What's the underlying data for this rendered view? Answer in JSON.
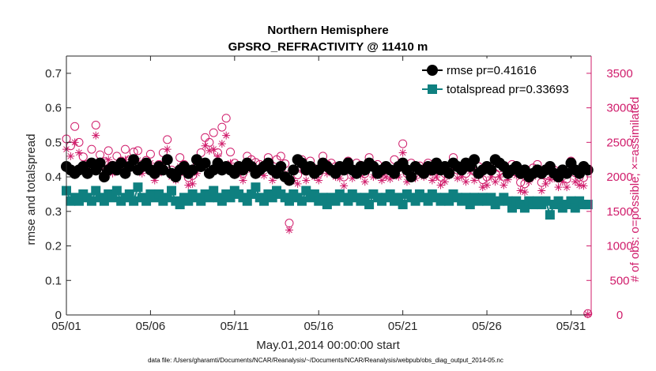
{
  "chart_data": {
    "type": "line",
    "title": "Northern Hemisphere",
    "subtitle": "GPSRO_REFRACTIVITY @ 11410 m",
    "xlabel": "May.01,2014 00:00:00 start",
    "ylabel": "rmse and totalspread",
    "ylabel_right": "# of obs: o=possible; ×=assimilated",
    "x_tick_labels": [
      "05/01",
      "05/06",
      "05/11",
      "05/16",
      "05/21",
      "05/26",
      "05/31"
    ],
    "x_tick_values": [
      0,
      5,
      10,
      15,
      20,
      25,
      30
    ],
    "xlim": [
      0,
      31.2
    ],
    "y_tick_labels": [
      "0",
      "0.1",
      "0.2",
      "0.3",
      "0.4",
      "0.5",
      "0.6",
      "0.7"
    ],
    "y_tick_values": [
      0,
      0.1,
      0.2,
      0.3,
      0.4,
      0.5,
      0.6,
      0.7
    ],
    "ylim": [
      0,
      0.75
    ],
    "y2_tick_labels": [
      "0",
      "500",
      "1000",
      "1500",
      "2000",
      "2500",
      "3000",
      "3500"
    ],
    "y2_tick_values": [
      0,
      500,
      1000,
      1500,
      2000,
      2500,
      3000,
      3500
    ],
    "y2lim": [
      0,
      3750
    ],
    "series": [
      {
        "name": "rmse",
        "legend": "rmse pr=0.41616",
        "color": "#000000",
        "marker": "circle",
        "x": [
          0.0,
          0.25,
          0.5,
          0.75,
          1.0,
          1.25,
          1.5,
          1.75,
          2.0,
          2.25,
          2.5,
          2.75,
          3.0,
          3.25,
          3.5,
          3.75,
          4.0,
          4.25,
          4.5,
          4.75,
          5.0,
          5.25,
          5.5,
          5.75,
          6.0,
          6.25,
          6.5,
          6.75,
          7.0,
          7.25,
          7.5,
          7.75,
          8.0,
          8.25,
          8.5,
          8.75,
          9.0,
          9.25,
          9.5,
          9.75,
          10.0,
          10.25,
          10.5,
          10.75,
          11.0,
          11.25,
          11.5,
          11.75,
          12.0,
          12.25,
          12.5,
          12.75,
          13.0,
          13.25,
          13.5,
          13.75,
          14.0,
          14.25,
          14.5,
          14.75,
          15.0,
          15.25,
          15.5,
          15.75,
          16.0,
          16.25,
          16.5,
          16.75,
          17.0,
          17.25,
          17.5,
          17.75,
          18.0,
          18.25,
          18.5,
          18.75,
          19.0,
          19.25,
          19.5,
          19.75,
          20.0,
          20.25,
          20.5,
          20.75,
          21.0,
          21.25,
          21.5,
          21.75,
          22.0,
          22.25,
          22.5,
          22.75,
          23.0,
          23.25,
          23.5,
          23.75,
          24.0,
          24.25,
          24.5,
          24.75,
          25.0,
          25.25,
          25.5,
          25.75,
          26.0,
          26.25,
          26.5,
          26.75,
          27.0,
          27.25,
          27.5,
          27.75,
          28.0,
          28.25,
          28.5,
          28.75,
          29.0,
          29.25,
          29.5,
          29.75,
          30.0,
          30.25,
          30.5,
          30.75,
          31.0
        ],
        "y": [
          0.43,
          0.42,
          0.41,
          0.42,
          0.43,
          0.41,
          0.44,
          0.42,
          0.44,
          0.4,
          0.42,
          0.43,
          0.42,
          0.44,
          0.41,
          0.43,
          0.45,
          0.42,
          0.43,
          0.44,
          0.42,
          0.41,
          0.43,
          0.42,
          0.45,
          0.41,
          0.4,
          0.42,
          0.43,
          0.41,
          0.42,
          0.45,
          0.43,
          0.44,
          0.41,
          0.42,
          0.44,
          0.42,
          0.43,
          0.42,
          0.41,
          0.43,
          0.42,
          0.44,
          0.43,
          0.41,
          0.42,
          0.43,
          0.44,
          0.42,
          0.41,
          0.43,
          0.4,
          0.39,
          0.42,
          0.45,
          0.44,
          0.42,
          0.43,
          0.41,
          0.42,
          0.44,
          0.43,
          0.42,
          0.41,
          0.43,
          0.42,
          0.44,
          0.42,
          0.41,
          0.43,
          0.42,
          0.44,
          0.43,
          0.41,
          0.42,
          0.43,
          0.42,
          0.41,
          0.43,
          0.44,
          0.42,
          0.4,
          0.43,
          0.42,
          0.41,
          0.43,
          0.42,
          0.44,
          0.42,
          0.43,
          0.41,
          0.44,
          0.43,
          0.42,
          0.44,
          0.43,
          0.45,
          0.41,
          0.42,
          0.43,
          0.42,
          0.45,
          0.44,
          0.43,
          0.41,
          0.42,
          0.43,
          0.41,
          0.42,
          0.4,
          0.41,
          0.42,
          0.41,
          0.42,
          0.43,
          0.41,
          0.4,
          0.42,
          0.41,
          0.44,
          0.42,
          0.41,
          0.43,
          0.42
        ]
      },
      {
        "name": "totalspread",
        "legend": "totalspread pr=0.33693",
        "color": "#0f8080",
        "marker": "square",
        "x": [
          0.0,
          0.25,
          0.5,
          0.75,
          1.0,
          1.25,
          1.5,
          1.75,
          2.0,
          2.25,
          2.5,
          2.75,
          3.0,
          3.25,
          3.5,
          3.75,
          4.0,
          4.25,
          4.5,
          4.75,
          5.0,
          5.25,
          5.5,
          5.75,
          6.0,
          6.25,
          6.5,
          6.75,
          7.0,
          7.25,
          7.5,
          7.75,
          8.0,
          8.25,
          8.5,
          8.75,
          9.0,
          9.25,
          9.5,
          9.75,
          10.0,
          10.25,
          10.5,
          10.75,
          11.0,
          11.25,
          11.5,
          11.75,
          12.0,
          12.25,
          12.5,
          12.75,
          13.0,
          13.25,
          13.5,
          13.75,
          14.0,
          14.25,
          14.5,
          14.75,
          15.0,
          15.25,
          15.5,
          15.75,
          16.0,
          16.25,
          16.5,
          16.75,
          17.0,
          17.25,
          17.5,
          17.75,
          18.0,
          18.25,
          18.5,
          18.75,
          19.0,
          19.25,
          19.5,
          19.75,
          20.0,
          20.25,
          20.5,
          20.75,
          21.0,
          21.25,
          21.5,
          21.75,
          22.0,
          22.25,
          22.5,
          22.75,
          23.0,
          23.25,
          23.5,
          23.75,
          24.0,
          24.25,
          24.5,
          24.75,
          25.0,
          25.25,
          25.5,
          25.75,
          26.0,
          26.25,
          26.5,
          26.75,
          27.0,
          27.25,
          27.5,
          27.75,
          28.0,
          28.25,
          28.5,
          28.75,
          29.0,
          29.25,
          29.5,
          29.75,
          30.0,
          30.25,
          30.5,
          30.75,
          31.0
        ],
        "y": [
          0.36,
          0.33,
          0.34,
          0.33,
          0.35,
          0.34,
          0.33,
          0.36,
          0.34,
          0.33,
          0.35,
          0.34,
          0.36,
          0.33,
          0.34,
          0.35,
          0.33,
          0.37,
          0.34,
          0.33,
          0.35,
          0.34,
          0.35,
          0.33,
          0.34,
          0.36,
          0.33,
          0.32,
          0.34,
          0.33,
          0.35,
          0.34,
          0.33,
          0.35,
          0.34,
          0.36,
          0.34,
          0.33,
          0.35,
          0.34,
          0.36,
          0.35,
          0.34,
          0.33,
          0.35,
          0.37,
          0.34,
          0.33,
          0.35,
          0.34,
          0.36,
          0.35,
          0.34,
          0.33,
          0.35,
          0.34,
          0.33,
          0.36,
          0.34,
          0.35,
          0.33,
          0.34,
          0.32,
          0.34,
          0.33,
          0.35,
          0.34,
          0.33,
          0.35,
          0.34,
          0.33,
          0.34,
          0.32,
          0.35,
          0.34,
          0.33,
          0.34,
          0.35,
          0.33,
          0.34,
          0.32,
          0.35,
          0.34,
          0.33,
          0.35,
          0.34,
          0.33,
          0.35,
          0.34,
          0.33,
          0.34,
          0.33,
          0.35,
          0.34,
          0.33,
          0.34,
          0.32,
          0.34,
          0.33,
          0.34,
          0.33,
          0.34,
          0.32,
          0.33,
          0.34,
          0.33,
          0.31,
          0.33,
          0.32,
          0.31,
          0.33,
          0.32,
          0.33,
          0.32,
          0.33,
          0.29,
          0.32,
          0.33,
          0.31,
          0.32,
          0.33,
          0.31,
          0.33,
          0.32,
          0.32
        ]
      },
      {
        "name": "obs_possible",
        "axis": "right",
        "color": "#d01c6b",
        "marker": "open-circle",
        "x": [
          0.0,
          0.25,
          0.5,
          0.75,
          1.0,
          1.25,
          1.5,
          1.75,
          2.0,
          2.25,
          2.5,
          2.75,
          3.0,
          3.25,
          3.5,
          3.75,
          4.0,
          4.25,
          4.5,
          4.75,
          5.0,
          5.25,
          5.5,
          5.75,
          6.0,
          6.25,
          6.5,
          6.75,
          7.0,
          7.25,
          7.5,
          7.75,
          8.0,
          8.25,
          8.5,
          8.75,
          9.0,
          9.25,
          9.5,
          9.75,
          10.0,
          10.25,
          10.5,
          10.75,
          11.0,
          11.25,
          11.5,
          11.75,
          12.0,
          12.25,
          12.5,
          12.75,
          13.0,
          13.25,
          13.5,
          13.75,
          14.0,
          14.25,
          14.5,
          14.75,
          15.0,
          15.25,
          15.5,
          15.75,
          16.0,
          16.25,
          16.5,
          16.75,
          17.0,
          17.25,
          17.5,
          17.75,
          18.0,
          18.25,
          18.5,
          18.75,
          19.0,
          19.25,
          19.5,
          19.75,
          20.0,
          20.25,
          20.5,
          20.75,
          21.0,
          21.25,
          21.5,
          21.75,
          22.0,
          22.25,
          22.5,
          22.75,
          23.0,
          23.25,
          23.5,
          23.75,
          24.0,
          24.25,
          24.5,
          24.75,
          25.0,
          25.25,
          25.5,
          25.75,
          26.0,
          26.25,
          26.5,
          26.75,
          27.0,
          27.25,
          27.5,
          27.75,
          28.0,
          28.25,
          28.5,
          28.75,
          29.0,
          29.25,
          29.5,
          29.75,
          30.0,
          30.25,
          30.5,
          30.75,
          31.0
        ],
        "y": [
          2550,
          2450,
          2730,
          2500,
          2290,
          2180,
          2400,
          2750,
          2320,
          2220,
          2380,
          2170,
          2300,
          2230,
          2400,
          2250,
          2360,
          2380,
          2150,
          2240,
          2330,
          2050,
          2180,
          2350,
          2540,
          2100,
          2030,
          2280,
          2180,
          1990,
          2020,
          2160,
          2350,
          2570,
          2500,
          2640,
          2350,
          2720,
          2850,
          2360,
          2200,
          2160,
          2050,
          2300,
          2250,
          2210,
          2180,
          2150,
          2280,
          2080,
          2250,
          2300,
          2190,
          1330,
          2100,
          2030,
          2250,
          2080,
          2230,
          2120,
          2050,
          2300,
          2180,
          2200,
          2150,
          2100,
          2000,
          2230,
          2100,
          2200,
          2170,
          2050,
          2280,
          2150,
          2180,
          2070,
          2140,
          2090,
          2250,
          2130,
          2480,
          2050,
          2200,
          2100,
          2160,
          2120,
          2200,
          2080,
          2130,
          2000,
          2050,
          2150,
          2280,
          2100,
          2120,
          2050,
          2210,
          2080,
          2150,
          1960,
          2000,
          2120,
          2050,
          2130,
          2000,
          2090,
          2180,
          2150,
          1920,
          1900,
          2050,
          2130,
          2180,
          1920,
          2030,
          2090,
          2100,
          1980,
          2050,
          1970,
          2230,
          2060,
          2000,
          1990,
          20
        ]
      },
      {
        "name": "obs_assimilated",
        "axis": "right",
        "color": "#d01c6b",
        "marker": "asterisk",
        "x": [
          0.0,
          0.25,
          0.5,
          0.75,
          1.0,
          1.25,
          1.5,
          1.75,
          2.0,
          2.25,
          2.5,
          2.75,
          3.0,
          3.25,
          3.5,
          3.75,
          4.0,
          4.25,
          4.5,
          4.75,
          5.0,
          5.25,
          5.5,
          5.75,
          6.0,
          6.25,
          6.5,
          6.75,
          7.0,
          7.25,
          7.5,
          7.75,
          8.0,
          8.25,
          8.5,
          8.75,
          9.0,
          9.25,
          9.5,
          9.75,
          10.0,
          10.25,
          10.5,
          10.75,
          11.0,
          11.25,
          11.5,
          11.75,
          12.0,
          12.25,
          12.5,
          12.75,
          13.0,
          13.25,
          13.5,
          13.75,
          14.0,
          14.25,
          14.5,
          14.75,
          15.0,
          15.25,
          15.5,
          15.75,
          16.0,
          16.25,
          16.5,
          16.75,
          17.0,
          17.25,
          17.5,
          17.75,
          18.0,
          18.25,
          18.5,
          18.75,
          19.0,
          19.25,
          19.5,
          19.75,
          20.0,
          20.25,
          20.5,
          20.75,
          21.0,
          21.25,
          21.5,
          21.75,
          22.0,
          22.25,
          22.5,
          22.75,
          23.0,
          23.25,
          23.5,
          23.75,
          24.0,
          24.25,
          24.5,
          24.75,
          25.0,
          25.25,
          25.5,
          25.75,
          26.0,
          26.25,
          26.5,
          26.75,
          27.0,
          27.25,
          27.5,
          27.75,
          28.0,
          28.25,
          28.5,
          28.75,
          29.0,
          29.25,
          29.5,
          29.75,
          30.0,
          30.25,
          30.5,
          30.75,
          31.0
        ],
        "y": [
          2400,
          2300,
          2500,
          2350,
          2150,
          2050,
          2200,
          2600,
          2200,
          2100,
          2250,
          2050,
          2180,
          2100,
          2250,
          2120,
          2220,
          2240,
          2050,
          2110,
          2200,
          1950,
          2050,
          2200,
          2400,
          2000,
          1950,
          2150,
          2050,
          1880,
          1900,
          2050,
          2200,
          2450,
          2380,
          2400,
          2300,
          2480,
          2600,
          2200,
          2050,
          2050,
          1950,
          2150,
          2100,
          2080,
          2050,
          2020,
          2150,
          1950,
          2100,
          2150,
          2050,
          1230,
          1950,
          1900,
          2100,
          1950,
          2100,
          2000,
          1950,
          2150,
          2050,
          2080,
          2000,
          1980,
          1870,
          2100,
          1980,
          2050,
          2020,
          1930,
          2130,
          2000,
          2050,
          1950,
          2000,
          1970,
          2100,
          2000,
          2350,
          1930,
          2050,
          1980,
          2040,
          2000,
          2050,
          1950,
          2000,
          1880,
          1930,
          2020,
          2150,
          1980,
          2000,
          1930,
          2080,
          1950,
          2020,
          1850,
          1880,
          2000,
          1930,
          2000,
          1880,
          1960,
          2050,
          2020,
          1800,
          1780,
          1930,
          2000,
          2050,
          1800,
          1900,
          1960,
          1980,
          1850,
          1930,
          1850,
          2100,
          1930,
          1880,
          1870,
          10
        ]
      }
    ],
    "legend_position": "top-right",
    "grid": false
  },
  "footer": "data file: /Users/gharamti/Documents/NCAR/Reanalysis/~/Documents/NCAR/Reanalysis/webpub/obs_diag_output_2014-05.nc",
  "colors": {
    "rmse": "#000000",
    "totalspread": "#0f8080",
    "obs": "#d01c6b",
    "axis": "#262626"
  }
}
